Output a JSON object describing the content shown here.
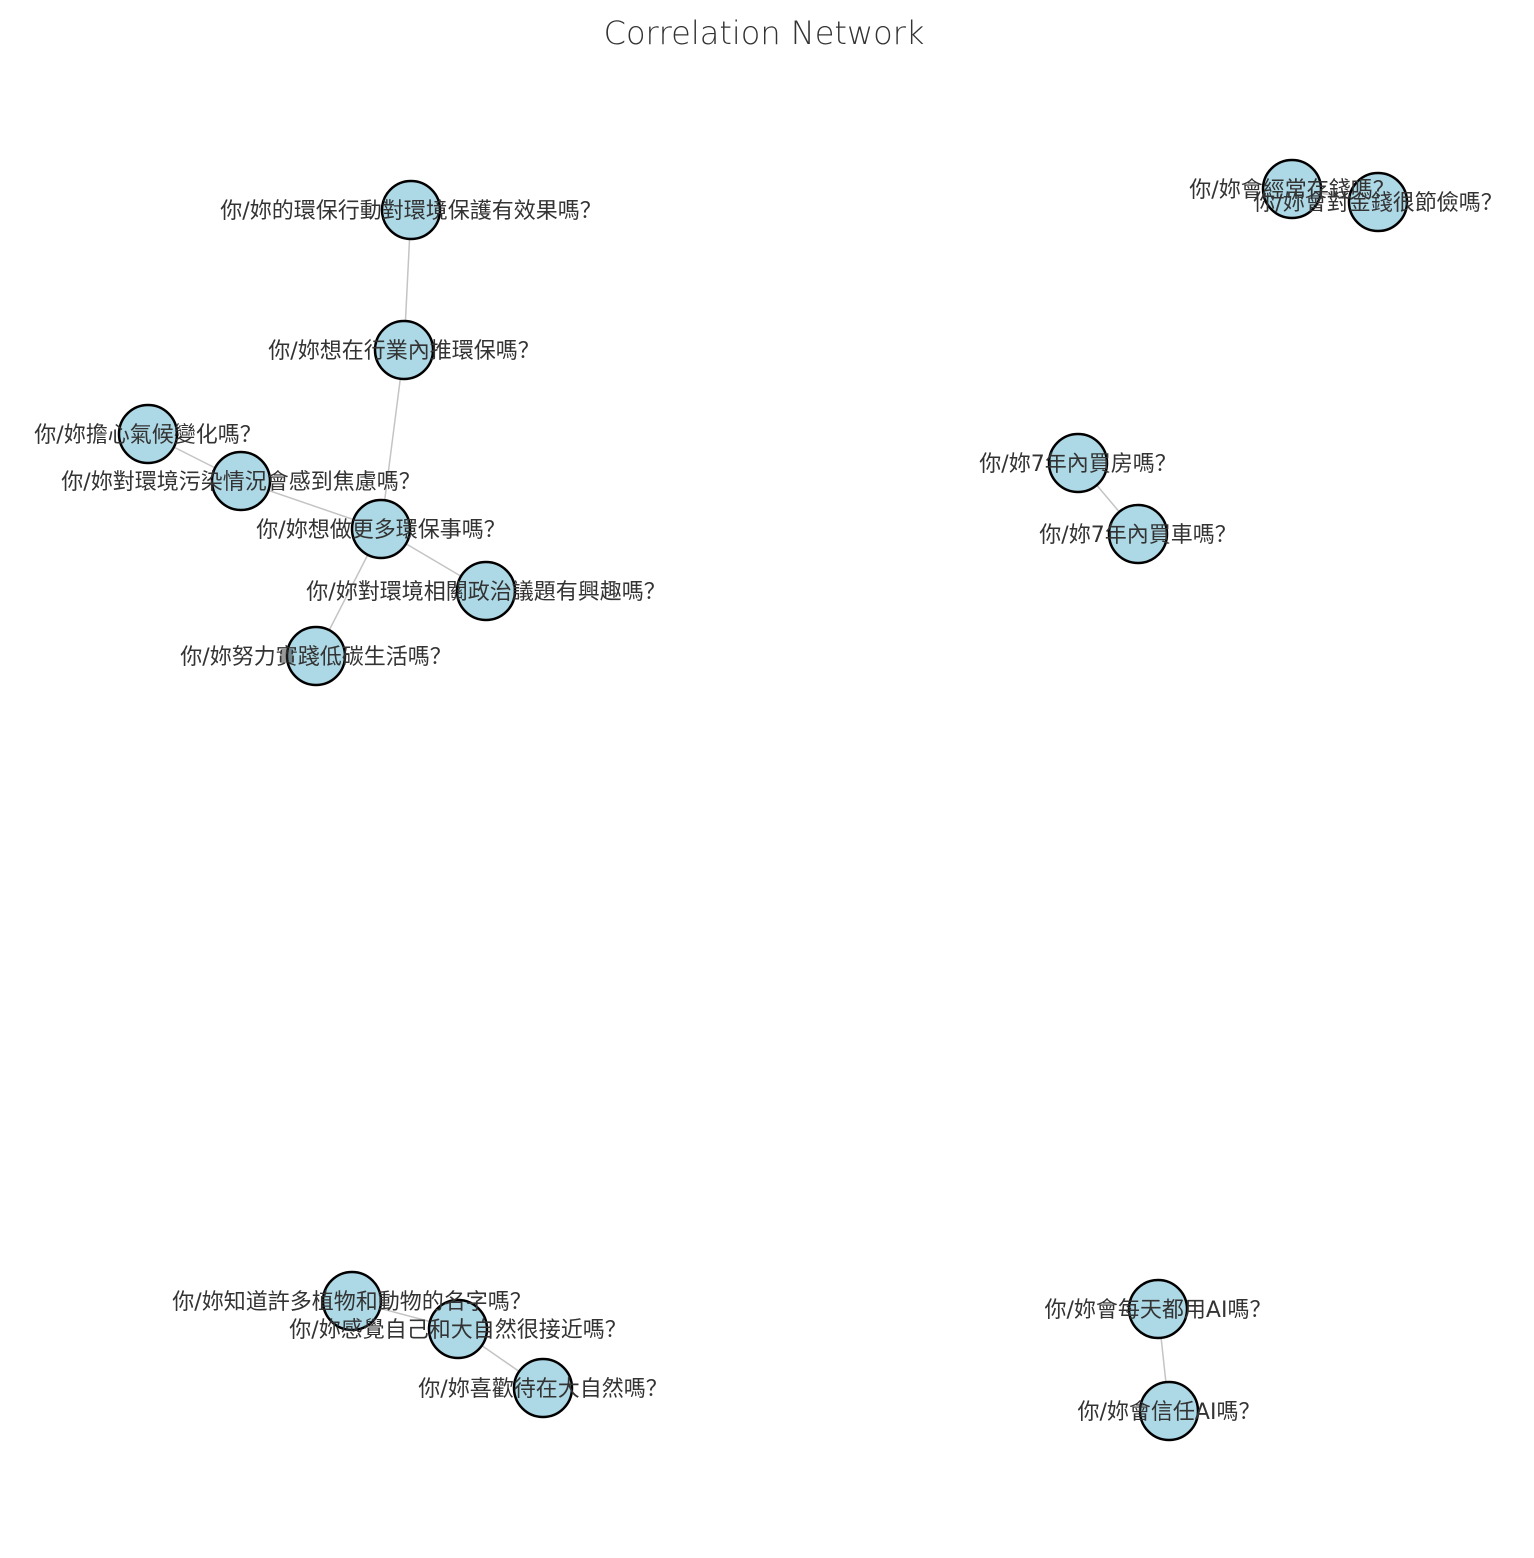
{
  "title": "Correlation Network",
  "colors": {
    "node_fill": "#add8e6",
    "node_stroke": "#000000",
    "edge": "#c4c4c4",
    "text": "#333333"
  },
  "nodes": [
    {
      "id": "n1",
      "label": "你/妳的環保行動對環境保護有效果嗎？"
    },
    {
      "id": "n2",
      "label": "你/妳想在行業內推環保嗎？"
    },
    {
      "id": "n3",
      "label": "你/妳擔心氣候變化嗎？"
    },
    {
      "id": "n4",
      "label": "你/妳對環境污染情況會感到焦慮嗎？"
    },
    {
      "id": "n5",
      "label": "你/妳想做更多環保事嗎？"
    },
    {
      "id": "n6",
      "label": "你/妳對環境相關政治議題有興趣嗎？"
    },
    {
      "id": "n7",
      "label": "你/妳努力實踐低碳生活嗎？"
    },
    {
      "id": "n8",
      "label": "你/妳會經常存錢嗎？"
    },
    {
      "id": "n9",
      "label": "你/妳會對金錢很節儉嗎？"
    },
    {
      "id": "n10",
      "label": "你/妳7年內買房嗎？"
    },
    {
      "id": "n11",
      "label": "你/妳7年內買車嗎？"
    },
    {
      "id": "n12",
      "label": "你/妳知道許多植物和動物的名字嗎？"
    },
    {
      "id": "n13",
      "label": "你/妳感覺自己和大自然很接近嗎？"
    },
    {
      "id": "n14",
      "label": "你/妳喜歡待在大自然嗎？"
    },
    {
      "id": "n15",
      "label": "你/妳會每天都用AI嗎？"
    },
    {
      "id": "n16",
      "label": "你/妳會信任AI嗎？"
    }
  ],
  "edges": [
    [
      "n1",
      "n2"
    ],
    [
      "n2",
      "n5"
    ],
    [
      "n3",
      "n4"
    ],
    [
      "n4",
      "n5"
    ],
    [
      "n5",
      "n6"
    ],
    [
      "n5",
      "n7"
    ],
    [
      "n8",
      "n9"
    ],
    [
      "n10",
      "n11"
    ],
    [
      "n12",
      "n13"
    ],
    [
      "n13",
      "n14"
    ],
    [
      "n15",
      "n16"
    ]
  ]
}
